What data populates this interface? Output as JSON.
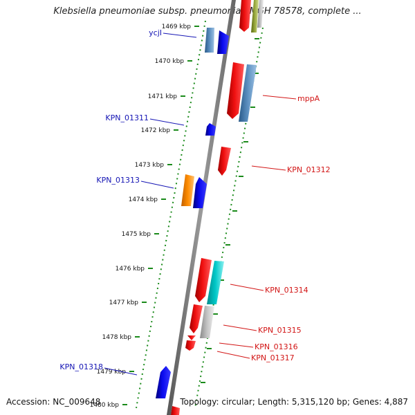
{
  "title": "Klebsiella pneumoniae subsp. pneumoniae MGH 78578, complete ...",
  "footer": {
    "accession": "Accession: NC_009648",
    "stats": "Topology: circular; Length: 5,315,120 bp; Genes: 4,887"
  },
  "colors": {
    "backbone": "#808080",
    "tick": "#1a8a1a",
    "forward_label": "#1414b4",
    "reverse_label": "#d21414"
  },
  "ticks": [
    "1469 kbp",
    "1470 kbp",
    "1471 kbp",
    "1472 kbp",
    "1473 kbp",
    "1474 kbp",
    "1475 kbp",
    "1476 kbp",
    "1477 kbp",
    "1478 kbp",
    "1479 kbp",
    "1480 kbp"
  ],
  "gene_labels": [
    {
      "text": "ycjI",
      "strand": "forward"
    },
    {
      "text": "mppA",
      "strand": "reverse"
    },
    {
      "text": "KPN_01311",
      "strand": "forward"
    },
    {
      "text": "KPN_01312",
      "strand": "reverse"
    },
    {
      "text": "KPN_01313",
      "strand": "forward"
    },
    {
      "text": "KPN_01314",
      "strand": "reverse"
    },
    {
      "text": "KPN_01315",
      "strand": "reverse"
    },
    {
      "text": "KPN_01316",
      "strand": "reverse"
    },
    {
      "text": "KPN_01317",
      "strand": "reverse"
    },
    {
      "text": "KPN_01318",
      "strand": "forward"
    }
  ],
  "gene_colors": {
    "forward_blue": "#0a0aee",
    "steel_blue": "#4a7fb0",
    "red": "#f01010",
    "orange": "#ff8c00",
    "cyan": "#00c8c8",
    "grey": "#b4b4b4",
    "olive": "#8a9a30"
  }
}
